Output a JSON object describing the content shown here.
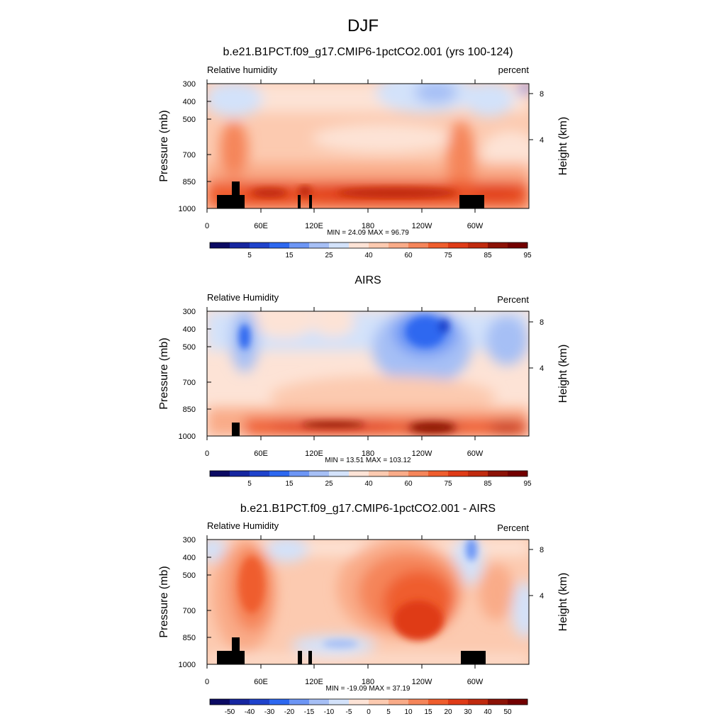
{
  "figure_title": "DJF",
  "colors": {
    "rh_levels": [
      "#0b0a63",
      "#1626a0",
      "#1f43cc",
      "#2d68f0",
      "#6d96f5",
      "#a6bff5",
      "#d3e2fa",
      "#fde3d6",
      "#fccab0",
      "#f9ab88",
      "#f5855a",
      "#ef5d2d",
      "#df3b17",
      "#c02a0e",
      "#8c1206",
      "#730000"
    ],
    "diff_levels": [
      "#0b0a63",
      "#1626a0",
      "#1f43cc",
      "#2d68f0",
      "#6d96f5",
      "#a6bff5",
      "#d3e2fa",
      "#fde3d6",
      "#fccab0",
      "#f9ab88",
      "#f5855a",
      "#ef5d2d",
      "#df3b17",
      "#c02a0e",
      "#8c1206",
      "#730000"
    ],
    "land": "#000000"
  },
  "chart_data": [
    {
      "type": "contour",
      "title": "b.e21.B1PCT.f09_g17.CMIP6-1pctCO2.001 (yrs 100-124)",
      "left_label": "Relative humidity",
      "right_label": "percent",
      "ylabel": "Pressure (mb)",
      "y2label": "Height (km)",
      "pressure_ticks": [
        "300",
        "400",
        "500",
        "700",
        "850",
        "1000"
      ],
      "height_ticks": [
        "8",
        "4"
      ],
      "lon_ticks": [
        "0",
        "60E",
        "120E",
        "180",
        "120W",
        "60W"
      ],
      "min_max_text": "MIN =  24.09  MAX =  96.79",
      "min": 24.09,
      "max": 96.79,
      "colorbar_labels": [
        "5",
        "15",
        "25",
        "40",
        "60",
        "75",
        "85",
        "95"
      ],
      "colorbar_levels": [
        5,
        10,
        15,
        20,
        25,
        30,
        40,
        50,
        60,
        65,
        70,
        75,
        80,
        85,
        90,
        95
      ]
    },
    {
      "type": "contour",
      "title": "AIRS",
      "left_label": "Relative Humidity",
      "right_label": "Percent",
      "ylabel": "Pressure (mb)",
      "y2label": "Height (km)",
      "pressure_ticks": [
        "300",
        "400",
        "500",
        "700",
        "850",
        "1000"
      ],
      "height_ticks": [
        "8",
        "4"
      ],
      "lon_ticks": [
        "0",
        "60E",
        "120E",
        "180",
        "120W",
        "60W"
      ],
      "min_max_text": "MIN =  13.51  MAX = 103.12",
      "min": 13.51,
      "max": 103.12,
      "colorbar_labels": [
        "5",
        "15",
        "25",
        "40",
        "60",
        "75",
        "85",
        "95"
      ],
      "colorbar_levels": [
        5,
        10,
        15,
        20,
        25,
        30,
        40,
        50,
        60,
        65,
        70,
        75,
        80,
        85,
        90,
        95
      ]
    },
    {
      "type": "contour",
      "title": "b.e21.B1PCT.f09_g17.CMIP6-1pctCO2.001 - AIRS",
      "left_label": "Relative Humidity",
      "right_label": "Percent",
      "ylabel": "Pressure (mb)",
      "y2label": "Height (km)",
      "pressure_ticks": [
        "300",
        "400",
        "500",
        "700",
        "850",
        "1000"
      ],
      "height_ticks": [
        "8",
        "4"
      ],
      "lon_ticks": [
        "0",
        "60E",
        "120E",
        "180",
        "120W",
        "60W"
      ],
      "min_max_text": "MIN = -19.09  MAX =  37.19",
      "min": -19.09,
      "max": 37.19,
      "colorbar_labels": [
        "-50",
        "-40",
        "-30",
        "-20",
        "-15",
        "-10",
        "-5",
        "0",
        "5",
        "10",
        "15",
        "20",
        "30",
        "40",
        "50"
      ],
      "colorbar_levels": [
        -50,
        -40,
        -30,
        -20,
        -15,
        -10,
        -5,
        0,
        5,
        10,
        15,
        20,
        30,
        40,
        50
      ]
    }
  ]
}
